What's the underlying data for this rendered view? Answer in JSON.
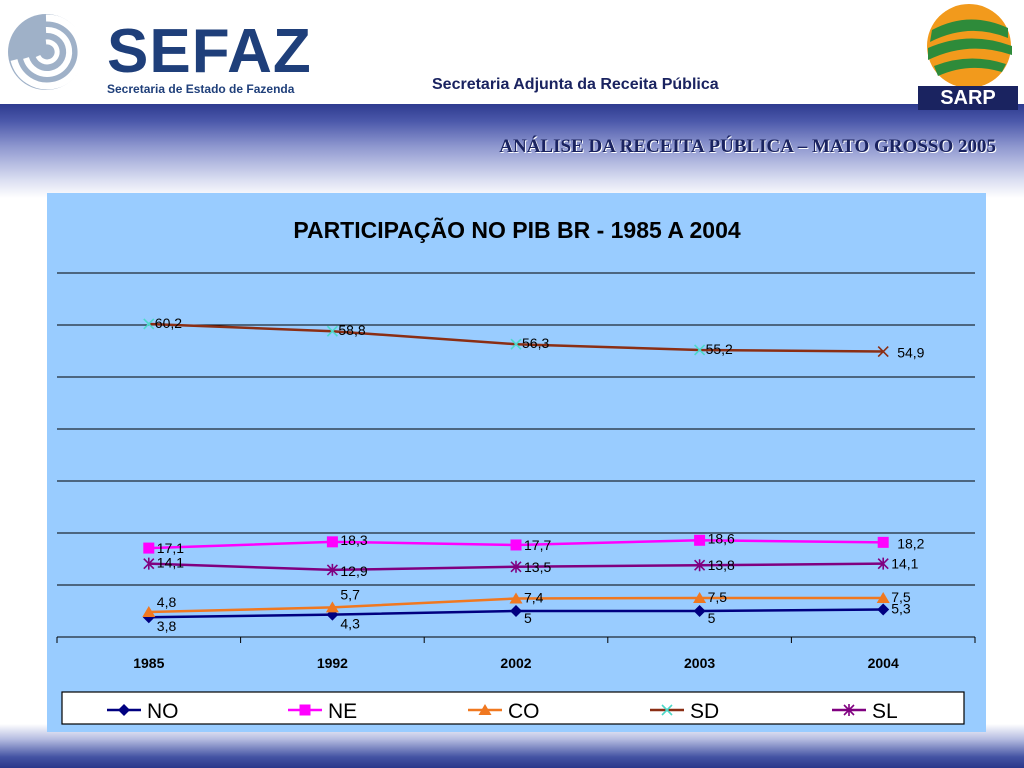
{
  "header": {
    "org_name": "SEFAZ",
    "org_sub": "Secretaria de Estado de Fazenda",
    "department": "Secretaria Adjunta da Receita Pública",
    "partner": "SARP",
    "page_subtitle": "ANÁLISE DA RECEITA PÚBLICA – MATO GROSSO 2005"
  },
  "colors": {
    "NO": "#000080",
    "NE": "#ff00ff",
    "CO": "#f07820",
    "SD": "#8b2e14",
    "SD_marker": "#4dd9c9",
    "SL": "#800080"
  },
  "chart_data": {
    "type": "line",
    "title": "PARTICIPAÇÃO NO PIB BR - 1985 A 2004",
    "categories": [
      "1985",
      "1992",
      "2002",
      "2003",
      "2004"
    ],
    "legend_position": "bottom",
    "grid": true,
    "series": [
      {
        "name": "NO",
        "marker": "diamond",
        "values": [
          3.8,
          4.3,
          5,
          5,
          5.3
        ],
        "labels": [
          "3,8",
          "4,3",
          "5",
          "5",
          "5,3"
        ]
      },
      {
        "name": "NE",
        "marker": "square",
        "values": [
          17.1,
          18.3,
          17.7,
          18.6,
          18.2
        ],
        "labels": [
          "17,1",
          "18,3",
          "17,7",
          "18,6",
          "18,2"
        ]
      },
      {
        "name": "CO",
        "marker": "triangle",
        "values": [
          4.8,
          5.7,
          7.4,
          7.5,
          7.5
        ],
        "labels": [
          "4,8",
          "5,7",
          "7,4",
          "7,5",
          "7,5"
        ]
      },
      {
        "name": "SD",
        "marker": "x",
        "values": [
          60.2,
          58.8,
          56.3,
          55.2,
          54.9
        ],
        "labels": [
          "60,2",
          "58,8",
          "56,3",
          "55,2",
          "54,9"
        ]
      },
      {
        "name": "SL",
        "marker": "star",
        "values": [
          14.1,
          12.9,
          13.5,
          13.8,
          14.1
        ],
        "labels": [
          "14,1",
          "12,9",
          "13,5",
          "13,8",
          "14,1"
        ]
      }
    ],
    "ylim": [
      0,
      70
    ]
  }
}
